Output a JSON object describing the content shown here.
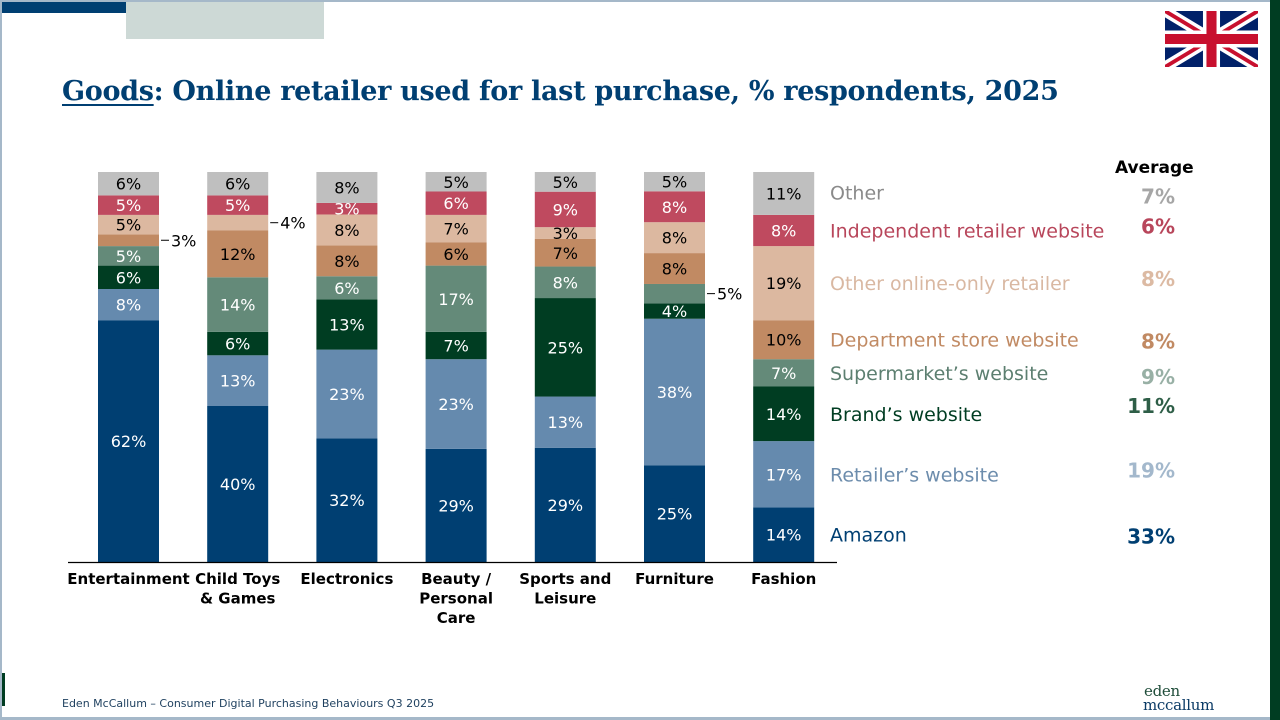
{
  "slide": {
    "title_emphasis": "Goods",
    "title_rest": ": Online retailer used for last purchase, % respondents, 2025",
    "footer": "Eden McCallum – Consumer Digital Purchasing Behaviours Q3 2025",
    "logo_line1": "eden",
    "logo_line2": "mccallum",
    "flag_icon": "uk-flag-icon",
    "average_header": "Average"
  },
  "colors": {
    "title": "#003f72",
    "accent_bar": "#003f72",
    "accent_block": "#cdd9d6",
    "side_stripe": "#003d22"
  },
  "chart_data": {
    "type": "bar",
    "stacked": true,
    "title": "Goods: Online retailer used for last purchase, % respondents, 2025",
    "xlabel": "",
    "ylabel": "",
    "ylim": [
      0,
      100
    ],
    "grid": false,
    "legend_position": "right",
    "categories": [
      "Entertainment",
      "Child Toys & Games",
      "Electronics",
      "Beauty / Personal Care",
      "Sports and Leisure",
      "Furniture",
      "Fashion"
    ],
    "category_lines": [
      [
        "Entertainment"
      ],
      [
        "Child Toys",
        "& Games"
      ],
      [
        "Electronics"
      ],
      [
        "Beauty /",
        "Personal",
        "Care"
      ],
      [
        "Sports and",
        "Leisure"
      ],
      [
        "Furniture"
      ],
      [
        "Fashion"
      ]
    ],
    "series": [
      {
        "name": "Amazon",
        "color": "#003f72",
        "label_color": "#ffffff",
        "legend_color": "#003f72",
        "average": "33%",
        "average_color": "#003f72",
        "values": [
          62,
          40,
          32,
          29,
          29,
          25,
          14
        ]
      },
      {
        "name": "Retailer’s website",
        "color": "#658aae",
        "label_color": "#ffffff",
        "legend_color": "#6c8cac",
        "average": "19%",
        "average_color": "#a3b8cc",
        "values": [
          8,
          13,
          23,
          23,
          13,
          38,
          17
        ]
      },
      {
        "name": "Brand’s website",
        "color": "#003d22",
        "label_color": "#ffffff",
        "legend_color": "#003d22",
        "average": "11%",
        "average_color": "#2e5e47",
        "values": [
          6,
          6,
          13,
          7,
          25,
          4,
          14
        ]
      },
      {
        "name": "Supermarket’s website",
        "color": "#648a79",
        "label_color": "#ffffff",
        "legend_color": "#5c7f70",
        "average": "9%",
        "average_color": "#98b0a5",
        "values": [
          5,
          14,
          6,
          17,
          8,
          5,
          7
        ]
      },
      {
        "name": "Department store website",
        "color": "#c18a63",
        "label_color": "#000000",
        "legend_color": "#c18a63",
        "average": "8%",
        "average_color": "#c18a63",
        "values": [
          3,
          12,
          8,
          6,
          7,
          8,
          10
        ]
      },
      {
        "name": "Other online-only retailer",
        "color": "#dcb8a0",
        "label_color": "#000000",
        "legend_color": "#d9b8a2",
        "average": "8%",
        "average_color": "#dcbaa3",
        "values": [
          5,
          4,
          8,
          7,
          3,
          8,
          19
        ]
      },
      {
        "name": "Independent retailer website",
        "color": "#bf4a5f",
        "label_color": "#ffffff",
        "legend_color": "#b8465b",
        "average": "6%",
        "average_color": "#b8465b",
        "values": [
          5,
          5,
          3,
          6,
          9,
          8,
          8
        ]
      },
      {
        "name": "Other",
        "color": "#bfbfbf",
        "label_color": "#000000",
        "legend_color": "#8a8a8a",
        "average": "7%",
        "average_color": "#a6a6a6",
        "values": [
          6,
          6,
          8,
          5,
          5,
          5,
          11
        ]
      }
    ],
    "outside_labels": [
      {
        "category": "Entertainment",
        "series": "Department store website",
        "value": 3
      },
      {
        "category": "Child Toys & Games",
        "series": "Other online-only retailer",
        "value": 4
      },
      {
        "category": "Furniture",
        "series": "Supermarket’s website",
        "value": 5
      }
    ]
  }
}
